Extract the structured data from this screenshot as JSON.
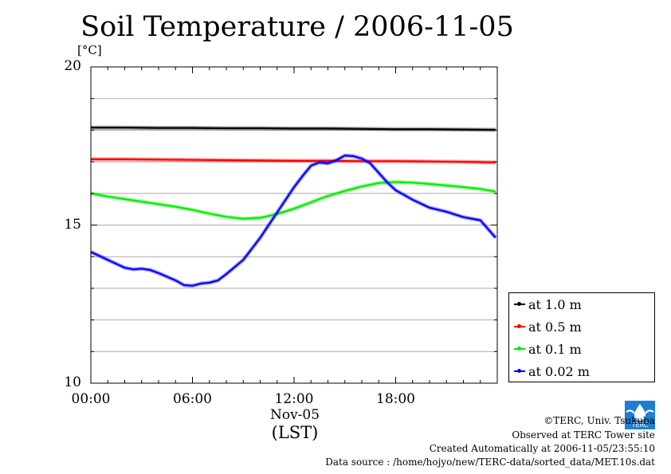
{
  "chart_data": {
    "type": "line",
    "title": "Soil Temperature / 2006-11-05",
    "ylabel": "[°C]",
    "ylim": [
      10,
      20
    ],
    "xlim": [
      0,
      24
    ],
    "y_ticks": [
      {
        "value": 10,
        "label": "10"
      },
      {
        "value": 15,
        "label": "15"
      },
      {
        "value": 20,
        "label": "20"
      }
    ],
    "y_gridlines": [
      11,
      12,
      13,
      14,
      15,
      16,
      17,
      18,
      19
    ],
    "x_ticks": [
      {
        "value": 0,
        "label": "00:00"
      },
      {
        "value": 6,
        "label": "06:00"
      },
      {
        "value": 12,
        "label": "12:00"
      },
      {
        "value": 18,
        "label": "18:00"
      }
    ],
    "x_sublabel": "Nov-05",
    "xlabel": "(LST)",
    "grid": true,
    "legend_position": "bottom-right, outside plot",
    "series": [
      {
        "name": "at 1.0 m",
        "color": "#000000",
        "x": [
          0,
          2,
          4,
          6,
          8,
          10,
          12,
          14,
          16,
          18,
          20,
          22,
          23.9
        ],
        "y": [
          18.08,
          18.08,
          18.07,
          18.07,
          18.06,
          18.06,
          18.05,
          18.05,
          18.04,
          18.03,
          18.03,
          18.02,
          18.01
        ]
      },
      {
        "name": "at 0.5 m",
        "color": "#ff0000",
        "x": [
          0,
          2,
          4,
          6,
          8,
          10,
          12,
          14,
          16,
          18,
          20,
          22,
          23.9
        ],
        "y": [
          17.08,
          17.08,
          17.07,
          17.06,
          17.05,
          17.04,
          17.03,
          17.03,
          17.02,
          17.02,
          17.01,
          17.0,
          16.98
        ]
      },
      {
        "name": "at 0.1 m",
        "color": "#00ee00",
        "x": [
          0,
          1,
          2,
          3,
          4,
          5,
          6,
          7,
          8,
          9,
          10,
          11,
          12,
          13,
          14,
          15,
          16,
          17,
          18,
          19,
          20,
          21,
          22,
          23,
          23.9
        ],
        "y": [
          16.0,
          15.9,
          15.82,
          15.74,
          15.66,
          15.58,
          15.48,
          15.36,
          15.26,
          15.2,
          15.23,
          15.35,
          15.52,
          15.72,
          15.92,
          16.08,
          16.22,
          16.33,
          16.36,
          16.34,
          16.3,
          16.25,
          16.2,
          16.14,
          16.06
        ]
      },
      {
        "name": "at 0.02 m",
        "color": "#0000ff",
        "x": [
          0,
          1,
          2,
          2.5,
          3,
          3.5,
          4,
          5,
          5.5,
          6,
          6.5,
          7,
          7.5,
          8,
          9,
          10,
          11,
          12,
          12.5,
          13,
          13.5,
          14,
          14.5,
          15,
          15.5,
          16,
          16.5,
          17,
          17.5,
          18,
          19,
          20,
          21,
          22,
          23,
          23.9
        ],
        "y": [
          14.15,
          13.9,
          13.65,
          13.6,
          13.62,
          13.58,
          13.48,
          13.25,
          13.1,
          13.08,
          13.15,
          13.18,
          13.25,
          13.45,
          13.9,
          14.6,
          15.4,
          16.2,
          16.55,
          16.88,
          16.98,
          16.95,
          17.05,
          17.2,
          17.18,
          17.1,
          16.95,
          16.65,
          16.35,
          16.1,
          15.8,
          15.55,
          15.42,
          15.25,
          15.15,
          14.6
        ]
      }
    ]
  },
  "units_label": "[°C]",
  "footer": {
    "copyright": "©TERC, Univ. Tsukuba",
    "site": "Observed at TERC Tower site",
    "created": "Created Automatically at 2006-11-05/23:55:10",
    "source": "Data source : /home/hojyo/new/TERC-data/sorted_data/MET.10s.dat"
  },
  "logo_text": "TERC",
  "colors": {
    "background": "#ffffff",
    "grid": "#aaaaaa",
    "axis": "#000000",
    "logo": "#1e7fd1"
  }
}
